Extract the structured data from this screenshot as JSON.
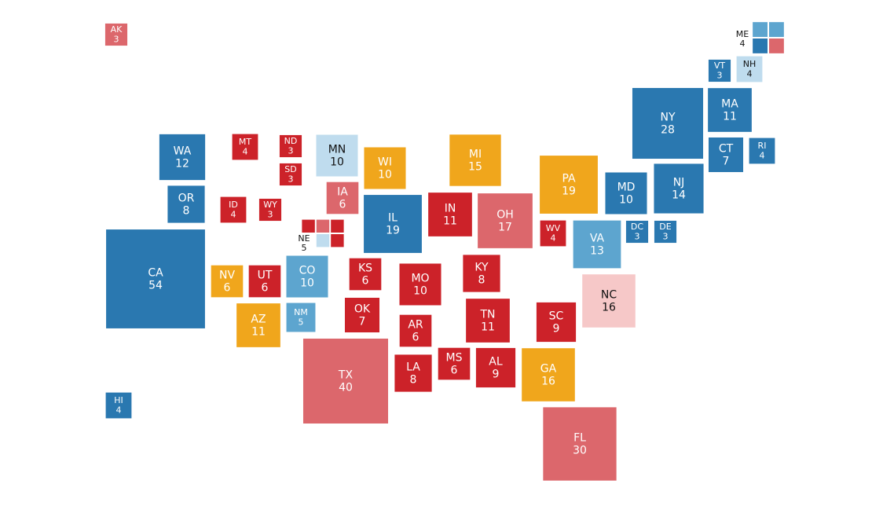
{
  "states": [
    {
      "name": "AK",
      "votes": 3,
      "color": "#dc676c"
    },
    {
      "name": "ME",
      "votes": 4,
      "districts": [
        "#5da5cf",
        "#5da5cf",
        "#2a78b0",
        "#dc676c"
      ]
    },
    {
      "name": "VT",
      "votes": 3,
      "color": "#2a78b0"
    },
    {
      "name": "NH",
      "votes": 4,
      "color": "#bfdcee"
    },
    {
      "name": "NY",
      "votes": 28,
      "color": "#2a78b0"
    },
    {
      "name": "MA",
      "votes": 11,
      "color": "#2a78b0"
    },
    {
      "name": "CT",
      "votes": 7,
      "color": "#2a78b0"
    },
    {
      "name": "RI",
      "votes": 4,
      "color": "#2a78b0"
    },
    {
      "name": "WA",
      "votes": 12,
      "color": "#2a78b0"
    },
    {
      "name": "MT",
      "votes": 4,
      "color": "#cc2229"
    },
    {
      "name": "ND",
      "votes": 3,
      "color": "#cc2229"
    },
    {
      "name": "SD",
      "votes": 3,
      "color": "#cc2229"
    },
    {
      "name": "MN",
      "votes": 10,
      "color": "#bfdcee"
    },
    {
      "name": "WI",
      "votes": 10,
      "color": "#f0a61c"
    },
    {
      "name": "MI",
      "votes": 15,
      "color": "#f0a61c"
    },
    {
      "name": "PA",
      "votes": 19,
      "color": "#f0a61c"
    },
    {
      "name": "MD",
      "votes": 10,
      "color": "#2a78b0"
    },
    {
      "name": "NJ",
      "votes": 14,
      "color": "#2a78b0"
    },
    {
      "name": "OR",
      "votes": 8,
      "color": "#2a78b0"
    },
    {
      "name": "ID",
      "votes": 4,
      "color": "#cc2229"
    },
    {
      "name": "WY",
      "votes": 3,
      "color": "#cc2229"
    },
    {
      "name": "IA",
      "votes": 6,
      "color": "#dc676c"
    },
    {
      "name": "NE",
      "votes": 5,
      "districts": [
        "#cc2229",
        "#dc676c",
        "#cc2229",
        "#bfdcee",
        "#cc2229"
      ]
    },
    {
      "name": "IL",
      "votes": 19,
      "color": "#2a78b0"
    },
    {
      "name": "IN",
      "votes": 11,
      "color": "#cc2229"
    },
    {
      "name": "OH",
      "votes": 17,
      "color": "#dc676c"
    },
    {
      "name": "WV",
      "votes": 4,
      "color": "#cc2229"
    },
    {
      "name": "VA",
      "votes": 13,
      "color": "#5da5cf"
    },
    {
      "name": "DC",
      "votes": 3,
      "color": "#2a78b0"
    },
    {
      "name": "DE",
      "votes": 3,
      "color": "#2a78b0"
    },
    {
      "name": "CA",
      "votes": 54,
      "color": "#2a78b0"
    },
    {
      "name": "NV",
      "votes": 6,
      "color": "#f0a61c"
    },
    {
      "name": "UT",
      "votes": 6,
      "color": "#cc2229"
    },
    {
      "name": "CO",
      "votes": 10,
      "color": "#5da5cf"
    },
    {
      "name": "KS",
      "votes": 6,
      "color": "#cc2229"
    },
    {
      "name": "MO",
      "votes": 10,
      "color": "#cc2229"
    },
    {
      "name": "KY",
      "votes": 8,
      "color": "#cc2229"
    },
    {
      "name": "NC",
      "votes": 16,
      "color": "#f6c8c8"
    },
    {
      "name": "AZ",
      "votes": 11,
      "color": "#f0a61c"
    },
    {
      "name": "NM",
      "votes": 5,
      "color": "#5da5cf"
    },
    {
      "name": "OK",
      "votes": 7,
      "color": "#cc2229"
    },
    {
      "name": "AR",
      "votes": 6,
      "color": "#cc2229"
    },
    {
      "name": "TN",
      "votes": 11,
      "color": "#cc2229"
    },
    {
      "name": "SC",
      "votes": 9,
      "color": "#cc2229"
    },
    {
      "name": "TX",
      "votes": 40,
      "color": "#dc676c"
    },
    {
      "name": "LA",
      "votes": 8,
      "color": "#cc2229"
    },
    {
      "name": "MS",
      "votes": 6,
      "color": "#cc2229"
    },
    {
      "name": "AL",
      "votes": 9,
      "color": "#cc2229"
    },
    {
      "name": "GA",
      "votes": 16,
      "color": "#f0a61c"
    },
    {
      "name": "HI",
      "votes": 4,
      "color": "#2a78b0"
    },
    {
      "name": "FL",
      "votes": 30,
      "color": "#dc676c"
    }
  ]
}
